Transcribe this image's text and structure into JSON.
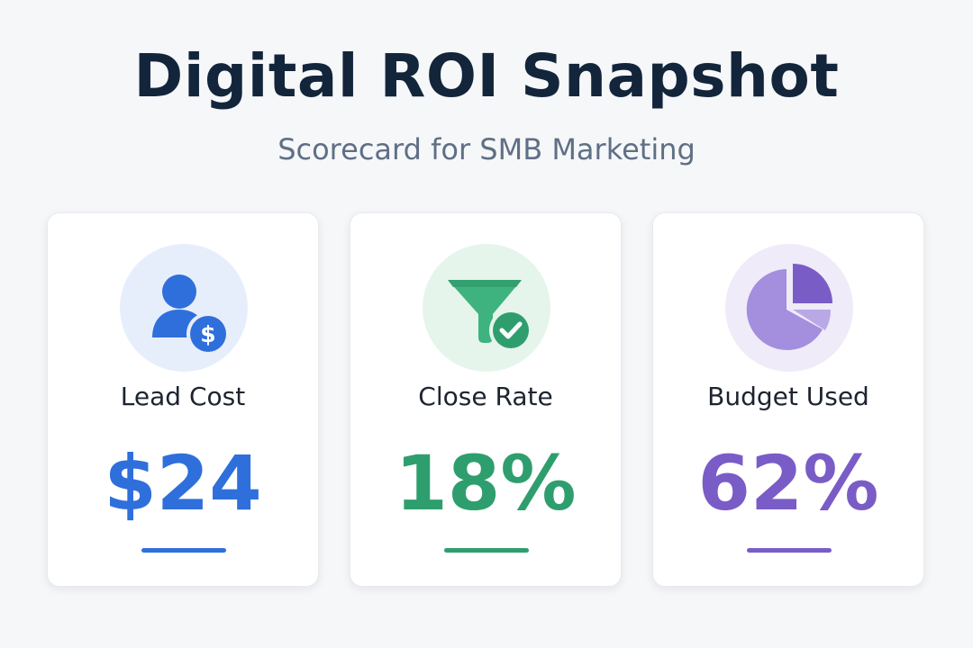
{
  "header": {
    "title": "Digital ROI Snapshot",
    "subtitle": "Scorecard for SMB Marketing"
  },
  "cards": [
    {
      "icon": "user-dollar-icon",
      "label": "Lead Cost",
      "value": "$24",
      "accent": "#2f6fdb",
      "icon_bg": "#e7eefb"
    },
    {
      "icon": "funnel-check-icon",
      "label": "Close Rate",
      "value": "18%",
      "accent": "#2f9e6e",
      "icon_bg": "#e5f5ec"
    },
    {
      "icon": "pie-chart-icon",
      "label": "Budget Used",
      "value": "62%",
      "accent": "#7a5cc7",
      "icon_bg": "#efebf8"
    }
  ],
  "colors": {
    "background": "#f6f7f9",
    "title": "#13253b",
    "subtitle": "#5f6f85"
  }
}
